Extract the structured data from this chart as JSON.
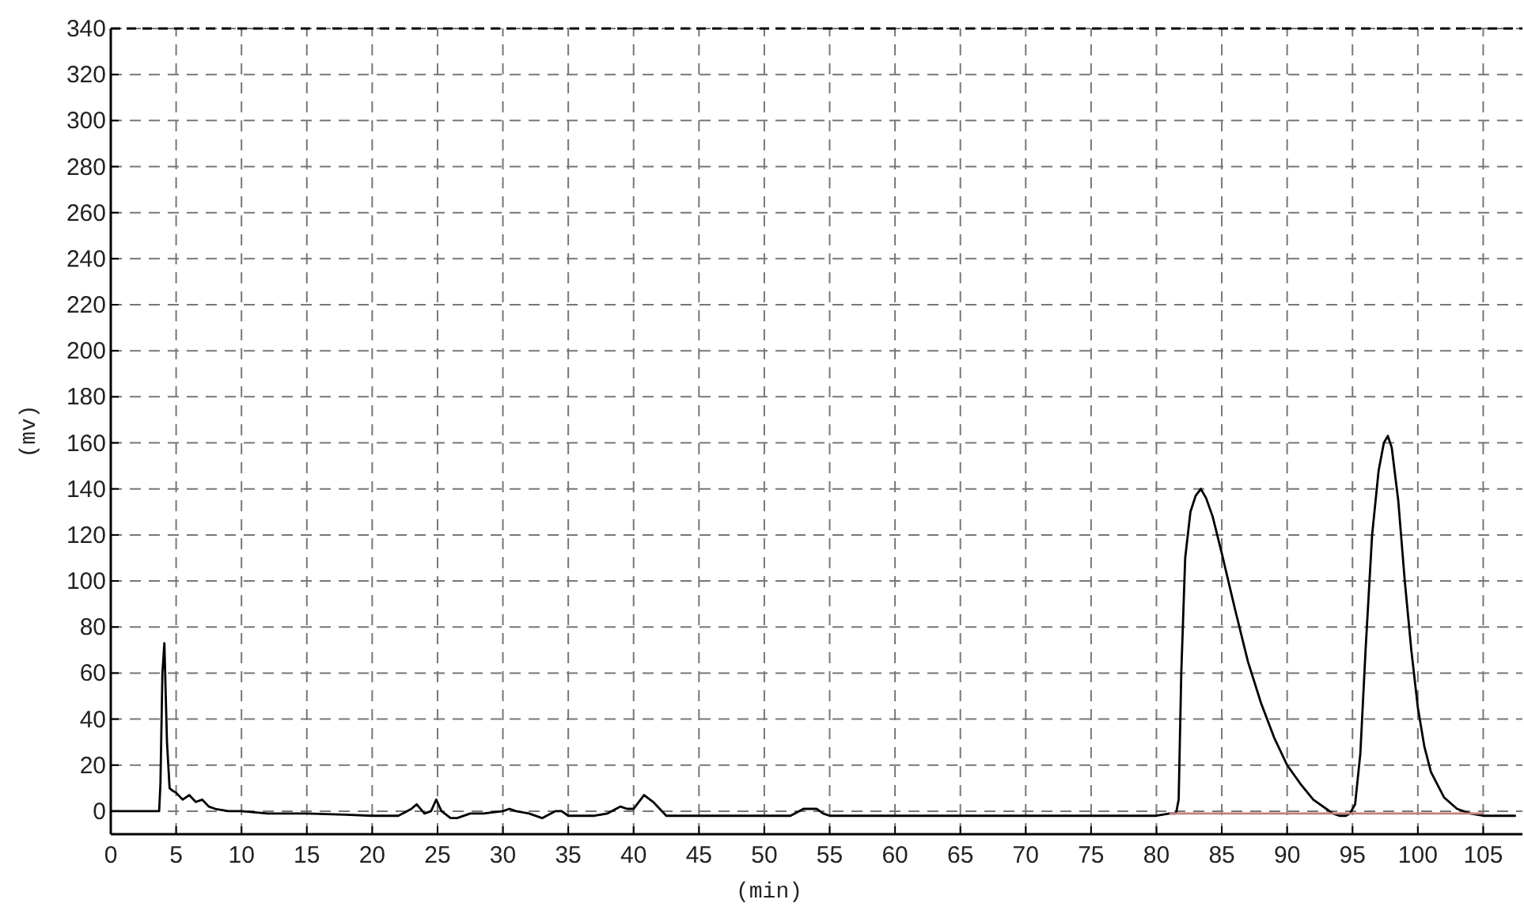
{
  "chart_data": {
    "type": "line",
    "xlabel": "(min)",
    "ylabel": "(mv)",
    "xlim": [
      0,
      108
    ],
    "ylim": [
      -10,
      340
    ],
    "xticks": [
      0,
      5,
      10,
      15,
      20,
      25,
      30,
      35,
      40,
      45,
      50,
      55,
      60,
      65,
      70,
      75,
      80,
      85,
      90,
      95,
      100,
      105
    ],
    "yticks": [
      0,
      20,
      40,
      60,
      80,
      100,
      120,
      140,
      160,
      180,
      200,
      220,
      240,
      260,
      280,
      300,
      320,
      340
    ],
    "grid": true,
    "marker": "none",
    "line_style": "solid",
    "series": [
      {
        "color": "#000000",
        "x": [
          0,
          2,
          3.7,
          3.8,
          3.95,
          4.1,
          4.3,
          4.5,
          4.7,
          5,
          5.5,
          6,
          6.5,
          7,
          7.5,
          8,
          9,
          10,
          12,
          15,
          18,
          20,
          22,
          23,
          23.4,
          24,
          24.5,
          24.9,
          25.3,
          26,
          26.5,
          27.5,
          28.5,
          30,
          30.5,
          31,
          32,
          33,
          34,
          34.5,
          35,
          36,
          37,
          38,
          39,
          39.5,
          40,
          40.8,
          41.5,
          42.5,
          43,
          45,
          50,
          52,
          53,
          54,
          54.5,
          55,
          60,
          70,
          80,
          81,
          81.5,
          81.7,
          81.9,
          82.2,
          82.6,
          83,
          83.4,
          83.8,
          84.3,
          85,
          86,
          87,
          88,
          89,
          90,
          91,
          92,
          93,
          93.5,
          94,
          94.5,
          94.8,
          95.2,
          95.6,
          96,
          96.5,
          97,
          97.4,
          97.7,
          98,
          98.5,
          99,
          99.5,
          100,
          100.5,
          101,
          102,
          103,
          104,
          105,
          106,
          107.5
        ],
        "values": [
          0,
          0,
          0,
          12,
          60,
          73,
          30,
          10,
          9,
          8,
          5,
          7,
          4,
          5,
          2,
          1,
          0,
          0,
          -1,
          -1,
          -1.5,
          -2,
          -2,
          1,
          3,
          -1,
          0,
          5,
          0,
          -3,
          -3,
          -1,
          -1,
          0,
          1,
          0,
          -1,
          -3,
          0,
          0,
          -2,
          -2,
          -2,
          -1,
          2,
          1,
          1,
          7,
          4,
          -2,
          -2,
          -2,
          -2,
          -2,
          1,
          1,
          -1,
          -2,
          -2,
          -2,
          -2,
          -1,
          -1,
          5,
          60,
          110,
          130,
          137,
          140,
          136,
          128,
          112,
          88,
          65,
          47,
          32,
          20,
          12,
          5,
          1,
          -1,
          -2,
          -2,
          -1,
          3,
          25,
          70,
          120,
          148,
          160,
          163,
          158,
          135,
          100,
          70,
          45,
          28,
          17,
          6,
          1,
          -1,
          -2,
          -2,
          -2
        ]
      },
      {
        "color": "#c08080",
        "x": [
          81,
          105
        ],
        "values": [
          -1,
          -1
        ]
      }
    ]
  }
}
